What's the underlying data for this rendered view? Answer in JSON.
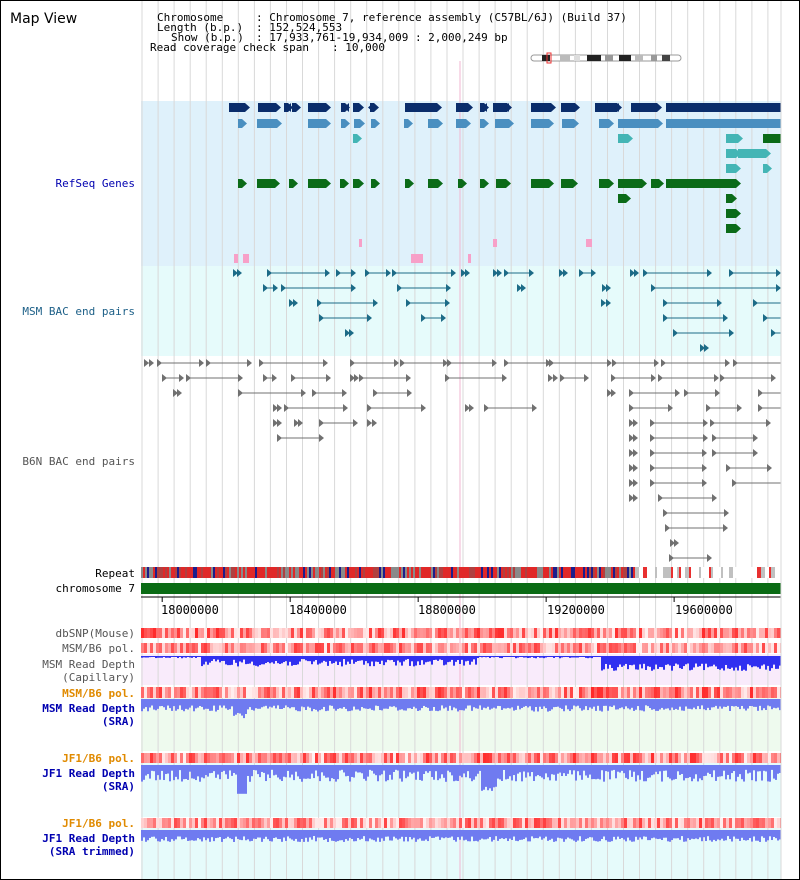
{
  "title": "Map View",
  "header": {
    "chromosome_key": "Chromosome",
    "chromosome_val": ": Chromosome 7, reference assembly (C57BL/6J) (Build 37)",
    "length_key": "Length (b.p.)",
    "length_val": ": 152,524,553",
    "show_key": "Show (b.p.)",
    "show_val": ": 17,933,761-19,934,009 : 2,000,249 bp",
    "span_key": "Read coverage check span",
    "span_val": ": 10,000"
  },
  "tracks": {
    "refseq": "RefSeq Genes",
    "msm_bac": "MSM BAC end pairs",
    "b6n_bac": "B6N BAC end pairs",
    "repeat": "Repeat",
    "chromosome": "chromosome 7",
    "dbsnp": "dbSNP(Mouse)",
    "msm_b6_pol_1": "MSM/B6 pol.",
    "msm_depth_cap_1": "MSM Read Depth",
    "msm_depth_cap_2": "(Capillary)",
    "msm_b6_pol_2": "MSM/B6 pol.",
    "msm_depth_sra_1": "MSM Read Depth",
    "msm_depth_sra_2": "(SRA)",
    "jf1_b6_pol_1": "JF1/B6 pol.",
    "jf1_depth_sra_1": "JF1 Read Depth",
    "jf1_depth_sra_2": "(SRA)",
    "jf1_b6_pol_2": "JF1/B6 pol.",
    "jf1_depth_trim_1": "JF1 Read Depth",
    "jf1_depth_trim_2": "(SRA trimmed)"
  },
  "axis": {
    "ticks": [
      "18000000",
      "18400000",
      "18800000",
      "19200000",
      "19600000"
    ],
    "tick_values": [
      18000000,
      18400000,
      18800000,
      19200000,
      19600000
    ],
    "start": 17933761,
    "end": 19934009
  },
  "colors": {
    "refseq_bg": "#dff1fb",
    "msm_bac_bg": "#e6fbfb",
    "gene_navy": "#0a2d6b",
    "gene_steel": "#4a8fc0",
    "gene_cyan": "#44b5b5",
    "gene_green": "#0b6b18",
    "gene_pink": "#f7a0c8",
    "bac_teal": "#1c6b87",
    "bac_gray": "#707070",
    "chromosome_bar": "#0a6b14",
    "label_blue": "#0000b0",
    "label_teal": "#1c5f87",
    "label_orange": "#e08a00",
    "label_gray": "#555555",
    "depth_blue": "#6f7bf0",
    "depth_dark": "#1020e0",
    "pol_red": "#e83030",
    "pol_light": "#fbd6d6"
  }
}
